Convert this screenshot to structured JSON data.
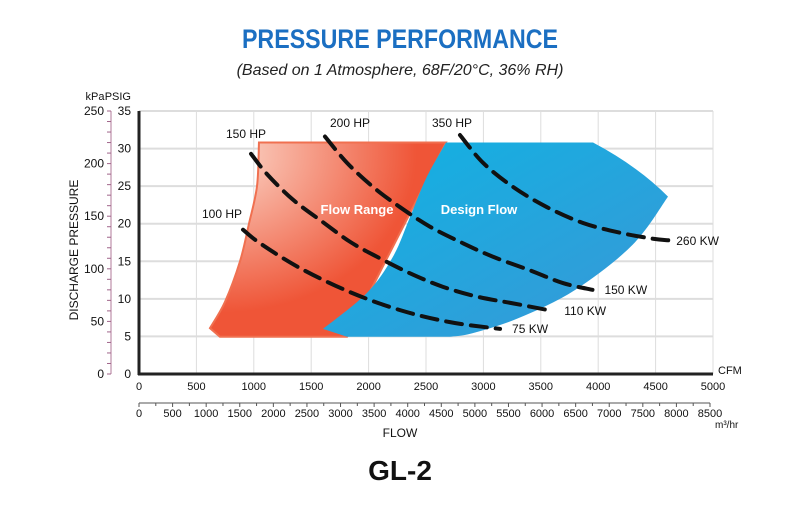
{
  "chart_data": {
    "type": "area",
    "title": "PRESSURE PERFORMANCE",
    "subtitle": "(Based on 1 Atmosphere, 68F/20°C, 36% RH)",
    "model_label": "GL-2",
    "xlabel": "FLOW",
    "ylabel": "DISCHARGE PRESSURE",
    "x_axis": {
      "unit": "CFM",
      "range": [
        0,
        5000
      ],
      "ticks": [
        0,
        500,
        1000,
        1500,
        2000,
        2500,
        3000,
        3500,
        4000,
        4500,
        5000
      ]
    },
    "x2_axis": {
      "unit": "m³/hr",
      "range": [
        0,
        8500
      ],
      "ticks": [
        0,
        500,
        1000,
        1500,
        2000,
        2500,
        3000,
        3500,
        4000,
        4500,
        5000,
        5500,
        6000,
        6500,
        7000,
        7500,
        8000,
        8500
      ]
    },
    "y_axis": {
      "unit": "PSIG",
      "range": [
        0,
        35
      ],
      "ticks": [
        0,
        5,
        10,
        15,
        20,
        25,
        30,
        35
      ]
    },
    "y2_axis": {
      "unit": "kPa",
      "range": [
        0,
        250
      ],
      "ticks": [
        0,
        50,
        100,
        150,
        200,
        250
      ]
    },
    "grid": true,
    "regions": [
      {
        "name": "Flow Range",
        "color": "#ef5537",
        "color_light": "#fbd9cc",
        "points": [
          [
            1045,
            30.8
          ],
          [
            1028,
            25
          ],
          [
            958,
            20
          ],
          [
            880,
            15
          ],
          [
            749,
            9.6
          ],
          [
            618,
            6.1
          ],
          [
            705,
            4.95
          ],
          [
            1812,
            4.95
          ],
          [
            2674,
            30.8
          ]
        ]
      },
      {
        "name": "Design Flow",
        "color": "#0fb3e3",
        "color_dark": "#3a97d6",
        "points": [
          [
            1603,
            6.0
          ],
          [
            1986,
            10.8
          ],
          [
            2212,
            15.6
          ],
          [
            2361,
            20.9
          ],
          [
            2500,
            26
          ],
          [
            2674,
            30.8
          ],
          [
            3955,
            30.8
          ],
          [
            4608,
            23.6
          ],
          [
            4300,
            17.2
          ],
          [
            3800,
            11.2
          ],
          [
            3300,
            7.4
          ],
          [
            2900,
            5.4
          ],
          [
            2709,
            4.95
          ],
          [
            1812,
            4.95
          ]
        ]
      }
    ],
    "series": [
      {
        "name": "100 HP",
        "end_label": "75 KW",
        "points": [
          [
            906,
            19.2
          ],
          [
            1054,
            17.4
          ],
          [
            1402,
            14.1
          ],
          [
            1838,
            10.9
          ],
          [
            2274,
            8.5
          ],
          [
            2709,
            6.9
          ],
          [
            3145,
            6.0
          ]
        ]
      },
      {
        "name": "150 HP",
        "end_label": "110 KW",
        "points": [
          [
            976,
            29.3
          ],
          [
            1115,
            26.6
          ],
          [
            1341,
            23.2
          ],
          [
            1603,
            20.2
          ],
          [
            1838,
            17.6
          ],
          [
            2073,
            15.6
          ],
          [
            2361,
            13.4
          ],
          [
            2648,
            11.6
          ],
          [
            2944,
            10.3
          ],
          [
            3258,
            9.4
          ],
          [
            3600,
            8.4
          ]
        ]
      },
      {
        "name": "200 HP",
        "end_label": "150 KW",
        "points": [
          [
            1620,
            31.6
          ],
          [
            1812,
            28.1
          ],
          [
            2038,
            24.9
          ],
          [
            2274,
            22.2
          ],
          [
            2535,
            19.6
          ],
          [
            2822,
            17.4
          ],
          [
            3084,
            15.6
          ],
          [
            3406,
            13.8
          ],
          [
            3693,
            12.1
          ],
          [
            3950,
            11.2
          ]
        ]
      },
      {
        "name": "350 HP",
        "end_label": "260 KW",
        "points": [
          [
            2796,
            31.8
          ],
          [
            2997,
            28.1
          ],
          [
            3258,
            24.9
          ],
          [
            3554,
            22.2
          ],
          [
            3868,
            20.1
          ],
          [
            4190,
            18.8
          ],
          [
            4477,
            18.0
          ],
          [
            4610,
            17.8
          ]
        ]
      }
    ]
  }
}
